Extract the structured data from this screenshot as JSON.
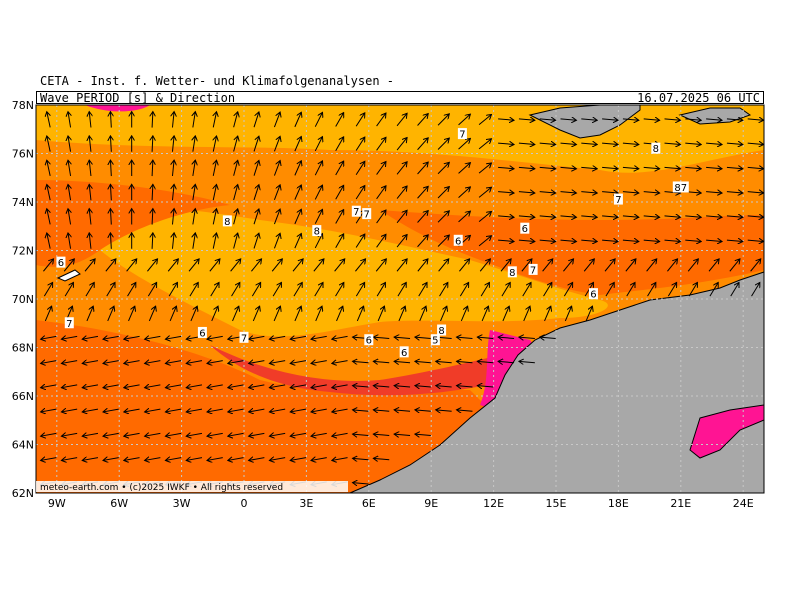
{
  "header": {
    "institute": "CETA - Inst. f. Wetter- und Klimafolgenanalysen -",
    "parameter": "Wave PERIOD [s] & Direction",
    "valid_time": "16.07.2025 06 UTC"
  },
  "footer": {
    "copyright": "meteo-earth.com • (c)2025 IWKF • All rights reserved"
  },
  "axes": {
    "lon_labels": [
      "9W",
      "6W",
      "3W",
      "0",
      "3E",
      "6E",
      "9E",
      "12E",
      "15E",
      "18E",
      "21E",
      "24E"
    ],
    "lat_labels": [
      "78N",
      "76N",
      "74N",
      "72N",
      "70N",
      "68N",
      "66N",
      "64N",
      "62N"
    ],
    "lon_range": [
      -10,
      25
    ],
    "lat_range": [
      62,
      78
    ]
  },
  "colors": {
    "period_ge_8": "#ffb400",
    "period_7": "#ff8c00",
    "period_6": "#ff6a00",
    "period_5": "#f03c28",
    "period_high": "#ff1493",
    "land": "#a8a8a8",
    "grid": "#c8c8c8"
  },
  "period_labels": [
    {
      "lon": 10.5,
      "lat": 76.8,
      "text": "7"
    },
    {
      "lon": 19.8,
      "lat": 76.2,
      "text": "8"
    },
    {
      "lon": 21.0,
      "lat": 74.6,
      "text": "87"
    },
    {
      "lon": 18.0,
      "lat": 74.1,
      "text": "7"
    },
    {
      "lon": -0.8,
      "lat": 73.2,
      "text": "8"
    },
    {
      "lon": 5.4,
      "lat": 73.6,
      "text": "7"
    },
    {
      "lon": 5.9,
      "lat": 73.5,
      "text": "7"
    },
    {
      "lon": 3.5,
      "lat": 72.8,
      "text": "8"
    },
    {
      "lon": 10.3,
      "lat": 72.4,
      "text": "6"
    },
    {
      "lon": 13.5,
      "lat": 72.9,
      "text": "6"
    },
    {
      "lon": -8.8,
      "lat": 71.5,
      "text": "6"
    },
    {
      "lon": 12.9,
      "lat": 71.1,
      "text": "8"
    },
    {
      "lon": 13.9,
      "lat": 71.2,
      "text": "7"
    },
    {
      "lon": 16.8,
      "lat": 70.2,
      "text": "6"
    },
    {
      "lon": -8.4,
      "lat": 69.0,
      "text": "7"
    },
    {
      "lon": -2.0,
      "lat": 68.6,
      "text": "6"
    },
    {
      "lon": 0.0,
      "lat": 68.4,
      "text": "7"
    },
    {
      "lon": 9.5,
      "lat": 68.7,
      "text": "8"
    },
    {
      "lon": 9.2,
      "lat": 68.3,
      "text": "5"
    },
    {
      "lon": 6.0,
      "lat": 68.3,
      "text": "6"
    },
    {
      "lon": 7.7,
      "lat": 67.8,
      "text": "6"
    }
  ]
}
